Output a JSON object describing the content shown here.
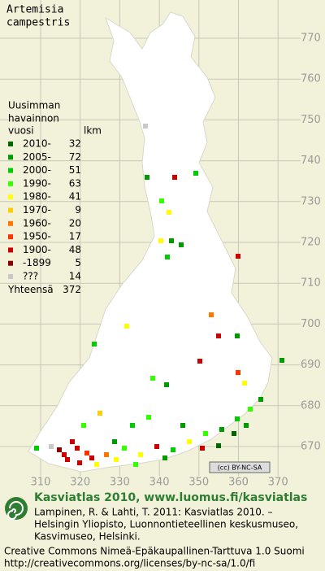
{
  "title": [
    "Artemisia",
    "campestris"
  ],
  "legend": {
    "header": [
      "Uusimman",
      "havainnon",
      "vuosi"
    ],
    "count_header": "lkm",
    "entries": [
      {
        "label": "2010-",
        "count": 32,
        "color": "#006600"
      },
      {
        "label": "2005-",
        "count": 72,
        "color": "#009900"
      },
      {
        "label": "2000-",
        "count": 51,
        "color": "#00cc00"
      },
      {
        "label": "1990-",
        "count": 63,
        "color": "#33ff00"
      },
      {
        "label": "1980-",
        "count": 41,
        "color": "#ffff00"
      },
      {
        "label": "1970-",
        "count": 9,
        "color": "#ffcc00"
      },
      {
        "label": "1960-",
        "count": 20,
        "color": "#ff7700"
      },
      {
        "label": "1950-",
        "count": 17,
        "color": "#ff3300"
      },
      {
        "label": "1900-",
        "count": 48,
        "color": "#cc0000"
      },
      {
        "label": "-1899",
        "count": 5,
        "color": "#880000"
      },
      {
        "label": "???",
        "count": 14,
        "color": "#c8c8c8"
      }
    ],
    "total_label": "Yhteensä",
    "total": 372
  },
  "grid": {
    "x_labels": [
      310,
      320,
      330,
      340,
      350,
      360,
      370
    ],
    "y_labels": [
      770,
      760,
      750,
      740,
      730,
      720,
      710,
      700,
      690,
      680,
      670
    ]
  },
  "license_badge": "(cc) BY-NC-SA",
  "footer": {
    "site": "Kasviatlas 2010, www.luomus.fi/kasviatlas",
    "citation": [
      "Lampinen, R. & Lahti, T. 2011: Kasviatlas 2010. –",
      "Helsingin Yliopisto, Luonnontieteellinen keskusmuseo,",
      "Kasvimuseo, Helsinki."
    ],
    "license": [
      "Creative Commons Nimeä-Epäkaupallinen-Tarttuva 1.0 Suomi",
      "http://creativecommons.org/licenses/by-nc-sa/1.0/fi"
    ]
  }
}
